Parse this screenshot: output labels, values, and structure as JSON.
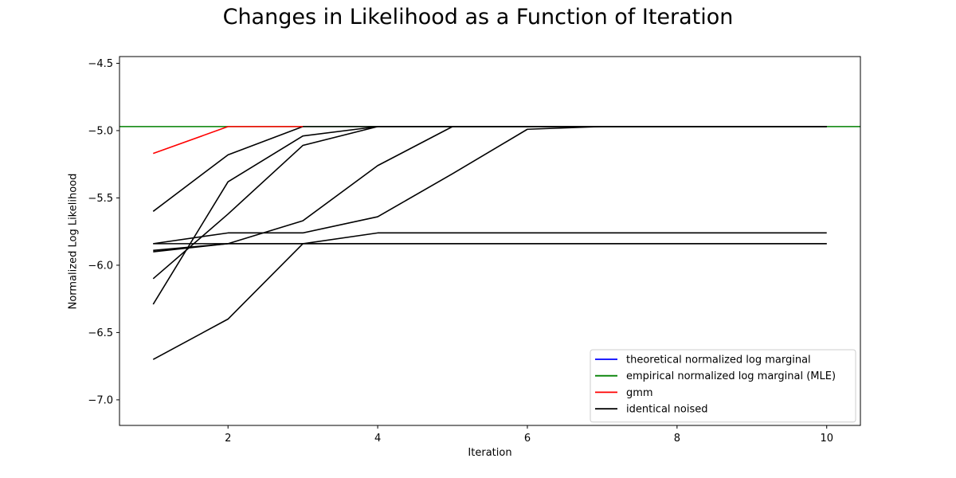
{
  "chart_data": {
    "type": "line",
    "title": "Changes in Likelihood as a Function of Iteration",
    "xlabel": "Iteration",
    "ylabel": "Normalized Log Likelihood",
    "xlim": [
      0.55,
      10.45
    ],
    "ylim": [
      -7.19,
      -4.45
    ],
    "x_ticks": [
      2,
      4,
      6,
      8,
      10
    ],
    "x_tick_labels": [
      "2",
      "4",
      "6",
      "8",
      "10"
    ],
    "y_ticks": [
      -7.0,
      -6.5,
      -6.0,
      -5.5,
      -5.0,
      -4.5
    ],
    "y_tick_labels": [
      "−7.0",
      "−6.5",
      "−6.0",
      "−5.5",
      "−5.0",
      "−4.5"
    ],
    "grid": false,
    "legend_position": "lower-right",
    "legend": [
      {
        "label": "theoretical normalized log marginal",
        "color": "#0000ff"
      },
      {
        "label": "empirical normalized log marginal (MLE)",
        "color": "#008000"
      },
      {
        "label": "gmm",
        "color": "#ff0000"
      },
      {
        "label": "identical noised",
        "color": "#000000"
      }
    ],
    "hlines": [
      {
        "name": "empirical normalized log marginal (MLE)",
        "y": -4.97,
        "color": "#008000"
      }
    ],
    "series": [
      {
        "name": "gmm",
        "color": "#ff0000",
        "x": [
          1,
          2,
          3
        ],
        "y": [
          -5.17,
          -4.97,
          -4.97
        ]
      },
      {
        "color": "#000000",
        "x": [
          1,
          2,
          3,
          4,
          5,
          6,
          7,
          8,
          9,
          10
        ],
        "y": [
          -5.6,
          -5.18,
          -4.97,
          -4.97,
          -4.97,
          -4.97,
          -4.97,
          -4.97,
          -4.97,
          -4.97
        ]
      },
      {
        "color": "#000000",
        "x": [
          1,
          2,
          3,
          4,
          5,
          6,
          7,
          8,
          9,
          10
        ],
        "y": [
          -6.29,
          -5.38,
          -5.04,
          -4.97,
          -4.97,
          -4.97,
          -4.97,
          -4.97,
          -4.97,
          -4.97
        ]
      },
      {
        "color": "#000000",
        "x": [
          1,
          2,
          3,
          4,
          5,
          6,
          7,
          8,
          9,
          10
        ],
        "y": [
          -6.1,
          -5.62,
          -5.11,
          -4.97,
          -4.97,
          -4.97,
          -4.97,
          -4.97,
          -4.97,
          -4.97
        ]
      },
      {
        "color": "#000000",
        "x": [
          1,
          2,
          3,
          4,
          5,
          6,
          7,
          8,
          9,
          10
        ],
        "y": [
          -5.9,
          -5.84,
          -5.67,
          -5.26,
          -4.97,
          -4.97,
          -4.97,
          -4.97,
          -4.97,
          -4.97
        ]
      },
      {
        "color": "#000000",
        "x": [
          1,
          2,
          3,
          4,
          5,
          6,
          7,
          8,
          9,
          10
        ],
        "y": [
          -5.84,
          -5.76,
          -5.76,
          -5.64,
          -5.32,
          -4.99,
          -4.97,
          -4.97,
          -4.97,
          -4.97
        ]
      },
      {
        "color": "#000000",
        "x": [
          1,
          2,
          3,
          4,
          5,
          6,
          7,
          8,
          9,
          10
        ],
        "y": [
          -6.7,
          -6.4,
          -5.84,
          -5.76,
          -5.76,
          -5.76,
          -5.76,
          -5.76,
          -5.76,
          -5.76
        ]
      },
      {
        "color": "#000000",
        "x": [
          1,
          2,
          3,
          4,
          5,
          6,
          7,
          8,
          9,
          10
        ],
        "y": [
          -5.89,
          -5.84,
          -5.84,
          -5.84,
          -5.84,
          -5.84,
          -5.84,
          -5.84,
          -5.84,
          -5.84
        ]
      },
      {
        "color": "#000000",
        "x": [
          1,
          2,
          3,
          4,
          5,
          6,
          7,
          8,
          9,
          10
        ],
        "y": [
          -5.84,
          -5.84,
          -5.84,
          -5.84,
          -5.84,
          -5.84,
          -5.84,
          -5.84,
          -5.84,
          -5.84
        ]
      }
    ]
  }
}
